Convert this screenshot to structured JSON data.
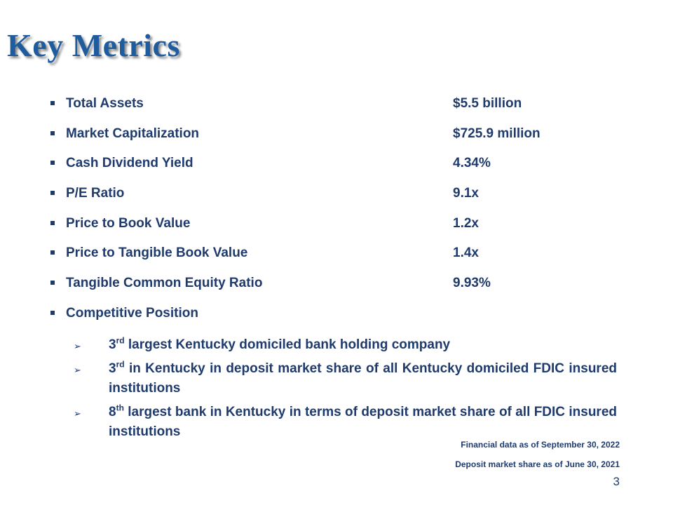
{
  "slide": {
    "title": "Key Metrics",
    "page_number": "3"
  },
  "metrics": [
    {
      "label": "Total Assets",
      "value": "$5.5 billion"
    },
    {
      "label": "Market Capitalization",
      "value": "$725.9 million"
    },
    {
      "label": "Cash Dividend Yield",
      "value": "4.34%"
    },
    {
      "label": "P/E Ratio",
      "value": "9.1x"
    },
    {
      "label": "Price to Book Value",
      "value": "1.2x"
    },
    {
      "label": "Price to Tangible Book Value",
      "value": "1.4x"
    },
    {
      "label": "Tangible Common Equity Ratio",
      "value": "9.93%"
    },
    {
      "label": "Competitive Position",
      "value": ""
    }
  ],
  "competitive_position": [
    {
      "ordinal": "3",
      "suffix": "rd",
      "text": " largest Kentucky domiciled bank holding company"
    },
    {
      "ordinal": "3",
      "suffix": "rd",
      "text": " in Kentucky in deposit market share of all Kentucky domiciled FDIC insured institutions"
    },
    {
      "ordinal": "8",
      "suffix": "th",
      "text": " largest bank in Kentucky in terms of deposit market share of all FDIC insured institutions"
    }
  ],
  "footnotes": {
    "financial": "Financial data as of September 30, 2022",
    "deposit": "Deposit market share as of June 30, 2021"
  }
}
